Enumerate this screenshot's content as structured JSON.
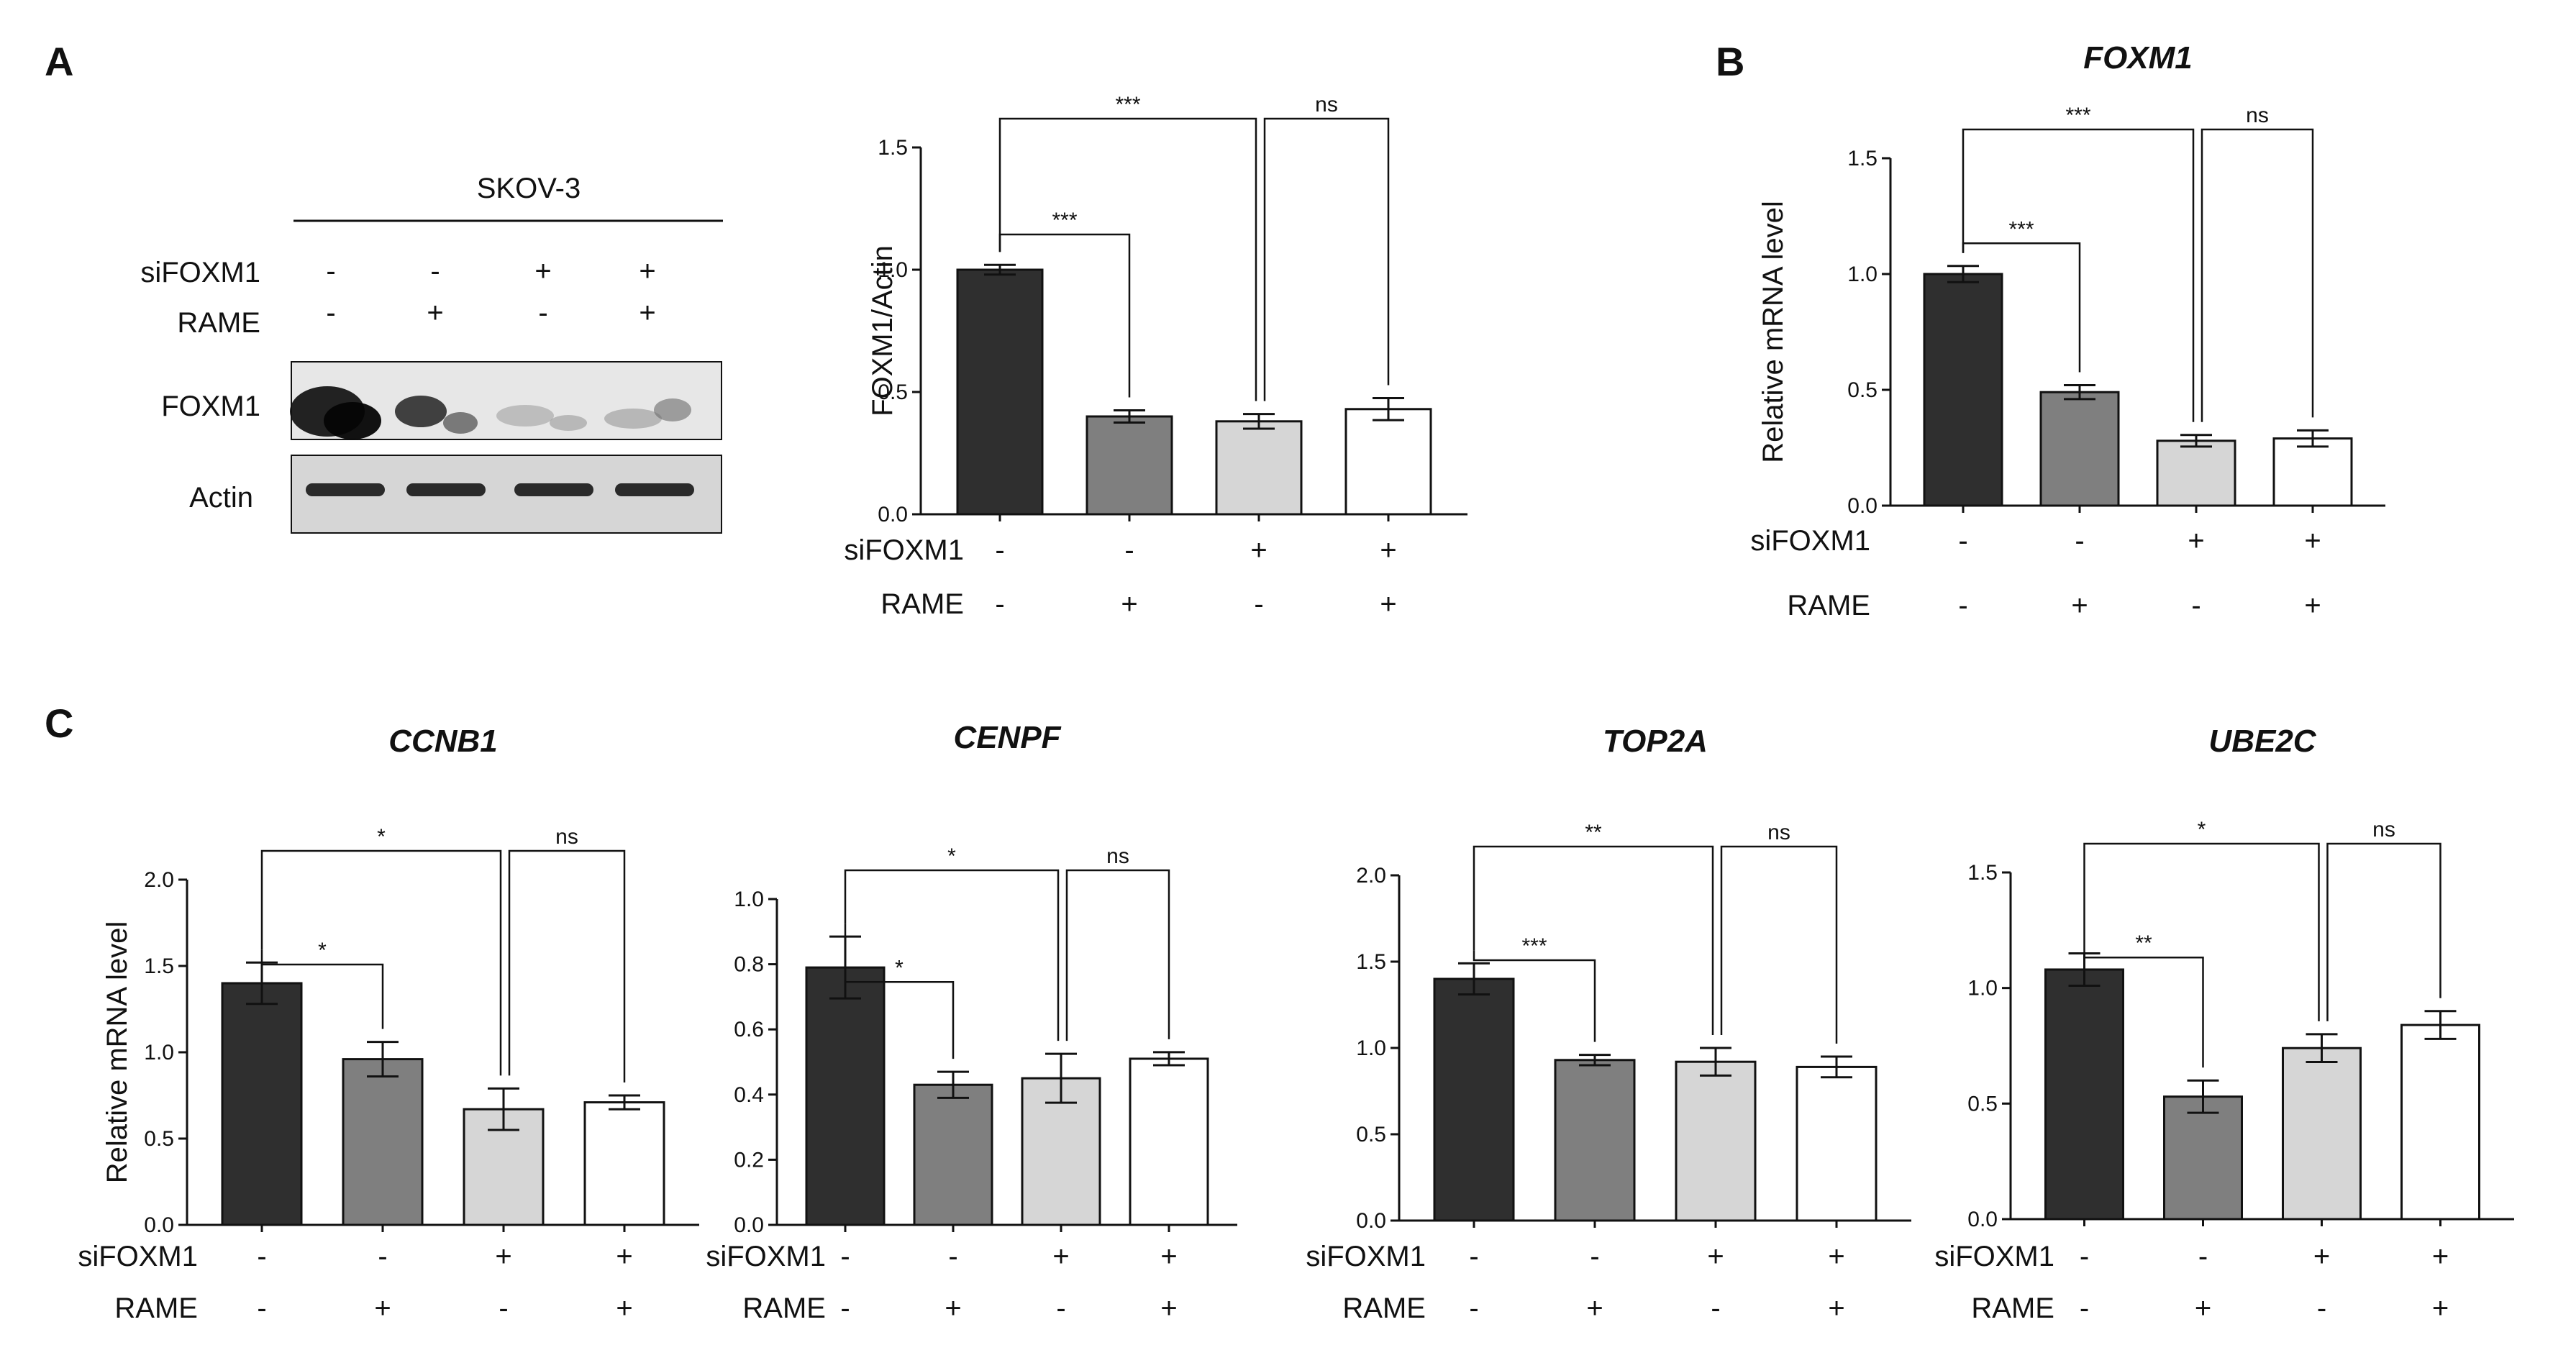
{
  "panel_labels": [
    "A",
    "B",
    "C"
  ],
  "western_blot": {
    "cell_line": "SKOV-3",
    "row_labels": [
      "siFOXM1",
      "RAME"
    ],
    "sifoxm1_signs": [
      "-",
      "-",
      "+",
      "+"
    ],
    "rame_signs": [
      "-",
      "+",
      "-",
      "+"
    ],
    "band_labels": [
      "FOXM1",
      "Actin"
    ]
  },
  "condition_rows": [
    "siFOXM1",
    "RAME"
  ],
  "chart_data": [
    {
      "type": "bar",
      "panel": "A",
      "title": "",
      "ylabel": "FOXM1/Actin",
      "ylim": [
        0,
        1.5
      ],
      "yticks": [
        "0.0",
        "0.5",
        "1.0",
        "1.5"
      ],
      "values": [
        1.0,
        0.4,
        0.38,
        0.43
      ],
      "errors": [
        0.02,
        0.025,
        0.03,
        0.045
      ],
      "sifoxm1": [
        "-",
        "-",
        "+",
        "+"
      ],
      "rame": [
        "-",
        "+",
        "-",
        "+"
      ],
      "significance": [
        "***",
        "***",
        "ns"
      ]
    },
    {
      "type": "bar",
      "panel": "B",
      "title": "FOXM1",
      "ylabel": "Relative  mRNA  level",
      "ylim": [
        0,
        1.5
      ],
      "yticks": [
        "0.0",
        "0.5",
        "1.0",
        "1.5"
      ],
      "values": [
        1.0,
        0.49,
        0.28,
        0.29
      ],
      "errors": [
        0.035,
        0.03,
        0.025,
        0.035
      ],
      "sifoxm1": [
        "-",
        "-",
        "+",
        "+"
      ],
      "rame": [
        "-",
        "+",
        "-",
        "+"
      ],
      "significance": [
        "***",
        "***",
        "ns"
      ]
    },
    {
      "type": "bar",
      "panel": "C",
      "title": "CCNB1",
      "ylabel": "Relative  mRNA  level",
      "ylim": [
        0,
        2.0
      ],
      "yticks": [
        "0.0",
        "0.5",
        "1.0",
        "1.5",
        "2.0"
      ],
      "values": [
        1.4,
        0.96,
        0.67,
        0.71
      ],
      "errors": [
        0.12,
        0.1,
        0.12,
        0.04
      ],
      "sifoxm1": [
        "-",
        "-",
        "+",
        "+"
      ],
      "rame": [
        "-",
        "+",
        "-",
        "+"
      ],
      "significance": [
        "*",
        "*",
        "ns"
      ]
    },
    {
      "type": "bar",
      "panel": "C",
      "title": "CENPF",
      "ylabel": "",
      "ylim": [
        0,
        1.0
      ],
      "yticks": [
        "0.0",
        "0.2",
        "0.4",
        "0.6",
        "0.8",
        "1.0"
      ],
      "values": [
        0.79,
        0.43,
        0.45,
        0.51
      ],
      "errors": [
        0.095,
        0.04,
        0.075,
        0.02
      ],
      "sifoxm1": [
        "-",
        "-",
        "+",
        "+"
      ],
      "rame": [
        "-",
        "+",
        "-",
        "+"
      ],
      "significance": [
        "*",
        "*",
        "ns"
      ]
    },
    {
      "type": "bar",
      "panel": "C",
      "title": "TOP2A",
      "ylabel": "",
      "ylim": [
        0,
        2.0
      ],
      "yticks": [
        "0.0",
        "0.5",
        "1.0",
        "1.5",
        "2.0"
      ],
      "values": [
        1.4,
        0.93,
        0.92,
        0.89
      ],
      "errors": [
        0.09,
        0.03,
        0.08,
        0.06
      ],
      "sifoxm1": [
        "-",
        "-",
        "+",
        "+"
      ],
      "rame": [
        "-",
        "+",
        "-",
        "+"
      ],
      "significance": [
        "***",
        "**",
        "ns"
      ]
    },
    {
      "type": "bar",
      "panel": "C",
      "title": "UBE2C",
      "ylabel": "",
      "ylim": [
        0,
        1.5
      ],
      "yticks": [
        "0.0",
        "0.5",
        "1.0",
        "1.5"
      ],
      "values": [
        1.08,
        0.53,
        0.74,
        0.84
      ],
      "errors": [
        0.07,
        0.07,
        0.06,
        0.06
      ],
      "sifoxm1": [
        "-",
        "-",
        "+",
        "+"
      ],
      "rame": [
        "-",
        "+",
        "-",
        "+"
      ],
      "significance": [
        "**",
        "*",
        "ns"
      ]
    }
  ],
  "colors": {
    "bars": [
      "#2f2f2f",
      "#7f7f7f",
      "#d6d6d6",
      "#ffffff"
    ],
    "ink": "#111111"
  }
}
